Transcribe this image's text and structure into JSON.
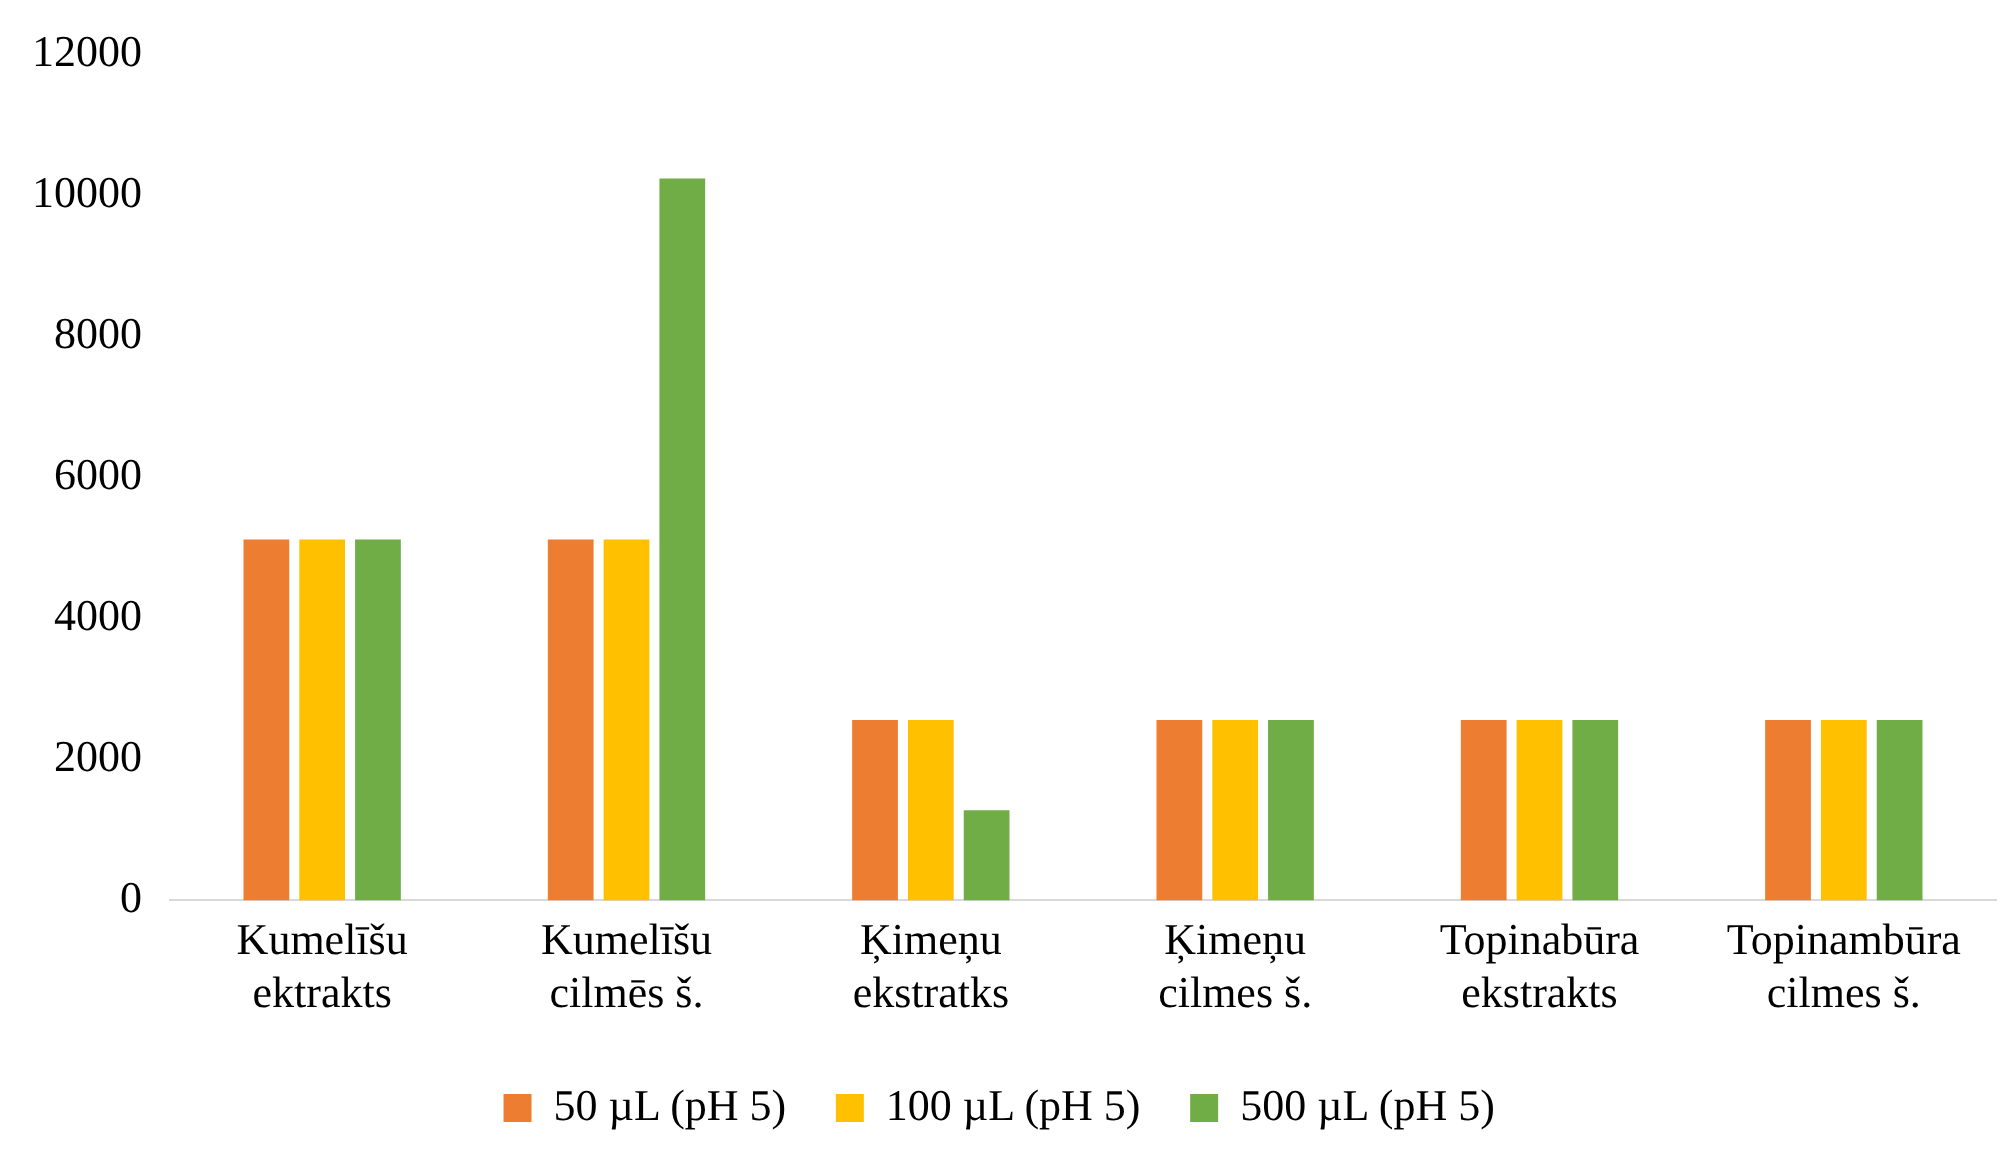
{
  "chart_data": {
    "type": "bar",
    "categories": [
      "Kumelīšu\nektrakts",
      "Kumelīšu\ncilmēs š.",
      "Ķimeņu\nekstratks",
      "Ķimeņu\ncilmes š.",
      "Topinabūra\nekstrakts",
      "Topinambūra\ncilmes š."
    ],
    "series": [
      {
        "name": "50 µL (pH 5)",
        "color": "#ed7d31",
        "values": [
          5120,
          5120,
          2560,
          2560,
          2560,
          2560
        ]
      },
      {
        "name": "100 µL (pH 5)",
        "color": "#ffc000",
        "values": [
          5120,
          5120,
          2560,
          2560,
          2560,
          2560
        ]
      },
      {
        "name": "500 µL (pH 5)",
        "color": "#70ad47",
        "values": [
          5120,
          10240,
          1280,
          2560,
          2560,
          2560
        ]
      }
    ],
    "ylim": [
      0,
      12000
    ],
    "yticks": [
      0,
      2000,
      4000,
      6000,
      8000,
      10000,
      12000
    ],
    "grid": false,
    "legend": "bottom"
  }
}
